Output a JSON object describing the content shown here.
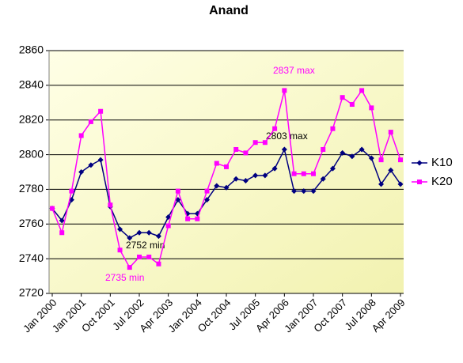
{
  "chart_data": {
    "type": "line",
    "title": "Anand",
    "categories": [
      "Jan 2000",
      null,
      null,
      "Jan 2001",
      null,
      null,
      "Oct 2001",
      null,
      null,
      "Jul 2002",
      null,
      null,
      "Apr 2003",
      null,
      null,
      "Jan 2004",
      null,
      null,
      "Oct 2004",
      null,
      null,
      "Jul 2005",
      null,
      null,
      "Apr 2006",
      null,
      null,
      "Jan 2007",
      null,
      null,
      "Oct 2007",
      null,
      null,
      "Jul 2008",
      null,
      null,
      "Apr 2009"
    ],
    "series": [
      {
        "name": "K10",
        "color": "#000080",
        "values": [
          2769,
          2762,
          2774,
          2790,
          2794,
          2797,
          2770,
          2757,
          2752,
          2755,
          2755,
          2753,
          2764,
          2774,
          2766,
          2766,
          2774,
          2782,
          2781,
          2786,
          2785,
          2788,
          2788,
          2792,
          2803,
          2779,
          2779,
          2779,
          2786,
          2792,
          2801,
          2799,
          2803,
          2798,
          2783,
          2791,
          2783
        ]
      },
      {
        "name": "K20",
        "color": "#ff00ff",
        "values": [
          2769,
          2755,
          2779,
          2811,
          2819,
          2825,
          2771,
          2745,
          2735,
          2741,
          2741,
          2737,
          2759,
          2779,
          2763,
          2763,
          2779,
          2795,
          2793,
          2803,
          2801,
          2807,
          2807,
          2815,
          2837,
          2789,
          2789,
          2789,
          2803,
          2815,
          2833,
          2829,
          2837,
          2827,
          2797,
          2813,
          2797
        ]
      }
    ],
    "annotations": [
      "2837 max",
      "2803 max",
      "2752 min",
      "2735 min"
    ],
    "ylim": [
      2720,
      2860
    ],
    "yticks": [
      2720,
      2740,
      2760,
      2780,
      2800,
      2820,
      2840,
      2860
    ],
    "grid": true,
    "legend": "right"
  }
}
